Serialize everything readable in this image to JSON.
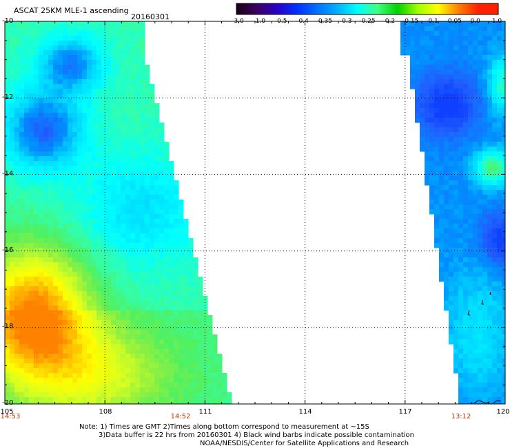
{
  "header": {
    "title": "ASCAT 25KM MLE-1 ascending",
    "date": "20160301"
  },
  "colorbar": {
    "labels": [
      "-3.0",
      "-1.0",
      "-0.5",
      "-0.4",
      "-0.35",
      "-0.3",
      "-0.25",
      "-0.2",
      "-0.15",
      "-0.1",
      "-0.05",
      "0.0",
      "1.0"
    ],
    "colors": [
      "#1a0016",
      "#3c0060",
      "#2800c8",
      "#0030ff",
      "#0070ff",
      "#00b0ff",
      "#00ffff",
      "#40ff80",
      "#00d000",
      "#a0ff00",
      "#ffff00",
      "#ff8000",
      "#ff2000"
    ]
  },
  "map": {
    "lat_labels": [
      "-10",
      "-12",
      "-14",
      "-16",
      "-18",
      "-20"
    ],
    "lon_labels": [
      "105",
      "108",
      "111",
      "114",
      "117",
      "120"
    ],
    "lat_range": [
      -20,
      -10
    ],
    "lon_range": [
      105,
      120
    ]
  },
  "times": [
    "14:53",
    "14:52",
    "13:12"
  ],
  "notes": {
    "line1": "Note: 1) Times are GMT 2)Times along bottom correspond to measurement at ~15S",
    "line2": "3)Data buffer is 22 hrs from 20160301 4) Black wind barbs indicate possible contamination",
    "line3": "NOAA/NESDIS/Center for Satellite Applications and Research"
  }
}
